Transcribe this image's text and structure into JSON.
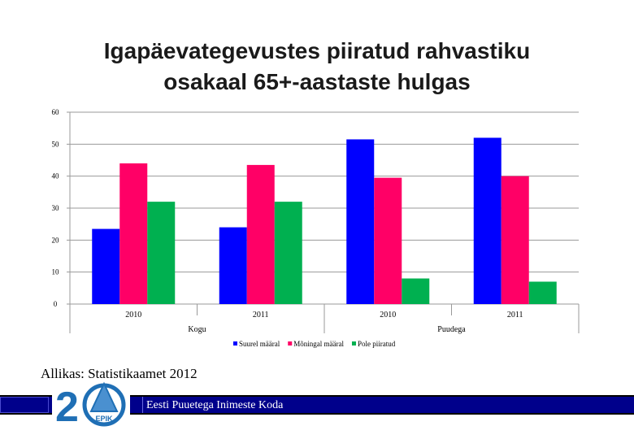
{
  "title": {
    "line1": "Igapäevategevustes piiratud rahvastiku",
    "line2": "osakaal 65+-aastaste hulgas"
  },
  "chart_data": {
    "type": "bar",
    "title": "Igapäevategevustes piiratud rahvastiku osakaal 65+-aastaste hulgas",
    "xlabel": "",
    "ylabel": "",
    "ylim": [
      0,
      60
    ],
    "yticks": [
      0,
      10,
      20,
      30,
      40,
      50,
      60
    ],
    "grid": true,
    "legend_position": "bottom",
    "categories": [
      "2010",
      "2011",
      "2010",
      "2011"
    ],
    "groups": [
      {
        "label": "Kogu",
        "categories": [
          "2010",
          "2011"
        ]
      },
      {
        "label": "Puudega",
        "categories": [
          "2010",
          "2011"
        ]
      }
    ],
    "series": [
      {
        "name": "Suurel määral",
        "color": "#0000ff",
        "values": [
          23.5,
          24,
          51.5,
          52
        ]
      },
      {
        "name": "Mõningal määral",
        "color": "#ff0066",
        "values": [
          44,
          43.5,
          39.5,
          40
        ]
      },
      {
        "name": "Pole piiratud",
        "color": "#00b050",
        "values": [
          32,
          32,
          8,
          7
        ]
      }
    ]
  },
  "source": "Allikas: Statistikaamet 2012",
  "footer": {
    "label": "Eesti Puuetega Inimeste Koda",
    "logo_number": "20",
    "logo_text": "EPIK"
  }
}
